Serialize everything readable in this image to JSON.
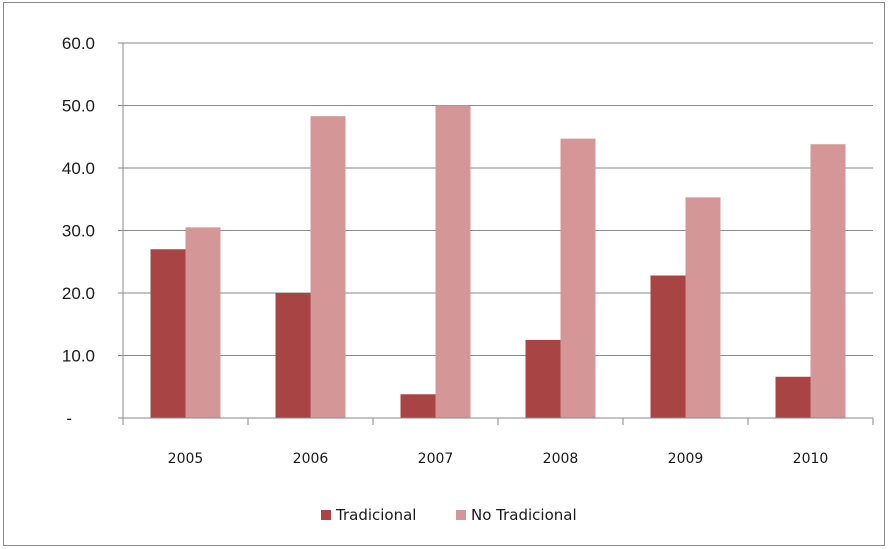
{
  "chart_data": {
    "type": "bar",
    "categories": [
      "2005",
      "2006",
      "2007",
      "2008",
      "2009",
      "2010"
    ],
    "series": [
      {
        "name": "Tradicional",
        "color": "#a94444",
        "values": [
          27.0,
          20.0,
          3.8,
          12.5,
          22.8,
          6.6
        ]
      },
      {
        "name": "No Tradicional",
        "color": "#d49696",
        "values": [
          30.5,
          48.3,
          50.0,
          44.7,
          35.3,
          43.8
        ]
      }
    ],
    "y_tick_labels": [
      "-",
      "10.0",
      "20.0",
      "30.0",
      "40.0",
      "50.0",
      "60.0"
    ],
    "ylim": [
      0,
      60
    ],
    "grid": true,
    "legend_position": "bottom"
  }
}
